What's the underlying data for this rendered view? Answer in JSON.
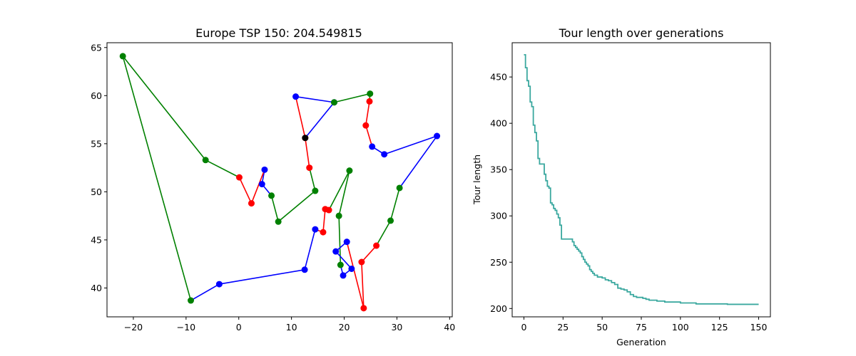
{
  "chart_data": [
    {
      "type": "scatter",
      "title": "Europe TSP 150: 204.549815",
      "xlabel": "",
      "ylabel": "",
      "xlim": [
        -25,
        40.5
      ],
      "ylim": [
        37,
        65.5
      ],
      "xticks": [
        -20,
        -10,
        0,
        10,
        20,
        30,
        40
      ],
      "yticks": [
        40,
        45,
        50,
        55,
        60,
        65
      ],
      "grid": false,
      "segment_colors": [
        "#0000ff",
        "#ff0000",
        "#008000",
        "#0000ff",
        "#ff0000",
        "#008000"
      ],
      "segment_stops": [
        2,
        4,
        7,
        9,
        11,
        14,
        17,
        20,
        23,
        27,
        30,
        32,
        35,
        37,
        41
      ],
      "tour": [
        [
          12.6,
          55.6
        ],
        [
          18.1,
          59.3
        ],
        [
          10.8,
          59.9
        ],
        [
          12.6,
          55.6
        ],
        [
          13.4,
          52.5
        ],
        [
          14.5,
          50.1
        ],
        [
          7.5,
          46.9
        ],
        [
          6.2,
          49.6
        ],
        [
          4.4,
          50.8
        ],
        [
          4.9,
          52.3
        ],
        [
          2.4,
          48.8
        ],
        [
          0.1,
          51.5
        ],
        [
          -6.3,
          53.3
        ],
        [
          -22.0,
          64.1
        ],
        [
          -9.1,
          38.7
        ],
        [
          -3.7,
          40.4
        ],
        [
          12.5,
          41.9
        ],
        [
          14.5,
          46.1
        ],
        [
          16.0,
          45.8
        ],
        [
          16.4,
          48.2
        ],
        [
          17.1,
          48.1
        ],
        [
          21.0,
          52.2
        ],
        [
          19.0,
          47.5
        ],
        [
          19.3,
          42.4
        ],
        [
          19.8,
          41.3
        ],
        [
          21.4,
          42.0
        ],
        [
          18.4,
          43.8
        ],
        [
          20.5,
          44.8
        ],
        [
          23.7,
          37.9
        ],
        [
          23.3,
          42.7
        ],
        [
          26.1,
          44.4
        ],
        [
          28.8,
          47.0
        ],
        [
          30.5,
          50.4
        ],
        [
          37.6,
          55.8
        ],
        [
          27.6,
          53.9
        ],
        [
          25.3,
          54.7
        ],
        [
          24.1,
          56.9
        ],
        [
          24.8,
          59.4
        ],
        [
          24.9,
          60.2
        ],
        [
          18.1,
          59.3
        ]
      ],
      "start_point": [
        12.6,
        55.6
      ],
      "start_color": "#000000"
    },
    {
      "type": "line",
      "title": "Tour length over generations",
      "xlabel": "Generation",
      "ylabel": "Tour length",
      "xlim": [
        -7.5,
        157.5
      ],
      "ylim": [
        191,
        487
      ],
      "xticks": [
        0,
        25,
        50,
        75,
        100,
        125,
        150
      ],
      "yticks": [
        200,
        250,
        300,
        350,
        400,
        450
      ],
      "grid": false,
      "color": "#3aa89f",
      "series": [
        {
          "x": [
            0,
            1,
            2,
            3,
            4,
            5,
            6,
            7,
            8,
            9,
            10,
            11,
            12,
            13,
            14,
            15,
            16,
            17,
            18,
            19,
            20,
            21,
            22,
            23,
            24,
            25,
            26,
            27,
            28,
            29,
            30,
            31,
            32,
            33,
            34,
            35,
            36,
            37,
            38,
            39,
            40,
            41,
            42,
            43,
            44,
            45,
            46,
            47,
            48,
            49,
            50,
            52,
            54,
            56,
            58,
            60,
            62,
            64,
            66,
            68,
            70,
            72,
            74,
            76,
            78,
            80,
            85,
            90,
            95,
            100,
            105,
            110,
            115,
            120,
            125,
            130,
            135,
            140,
            145,
            150
          ],
          "values": [
            474,
            460,
            446,
            440,
            423,
            418,
            398,
            390,
            381,
            362,
            356,
            356,
            356,
            345,
            338,
            332,
            330,
            314,
            312,
            308,
            306,
            302,
            298,
            290,
            275,
            275,
            275,
            275,
            275,
            275,
            275,
            272,
            268,
            266,
            264,
            262,
            260,
            256,
            253,
            250,
            248,
            246,
            242,
            240,
            238,
            236,
            236,
            234,
            234,
            234,
            233,
            231,
            230,
            228,
            226,
            222,
            221,
            220,
            218,
            215,
            213,
            212,
            212,
            211,
            210,
            209,
            208,
            207,
            207,
            206,
            206,
            205,
            205,
            205,
            205,
            204.5,
            204.5,
            204.5,
            204.5,
            204.5
          ]
        }
      ]
    }
  ]
}
